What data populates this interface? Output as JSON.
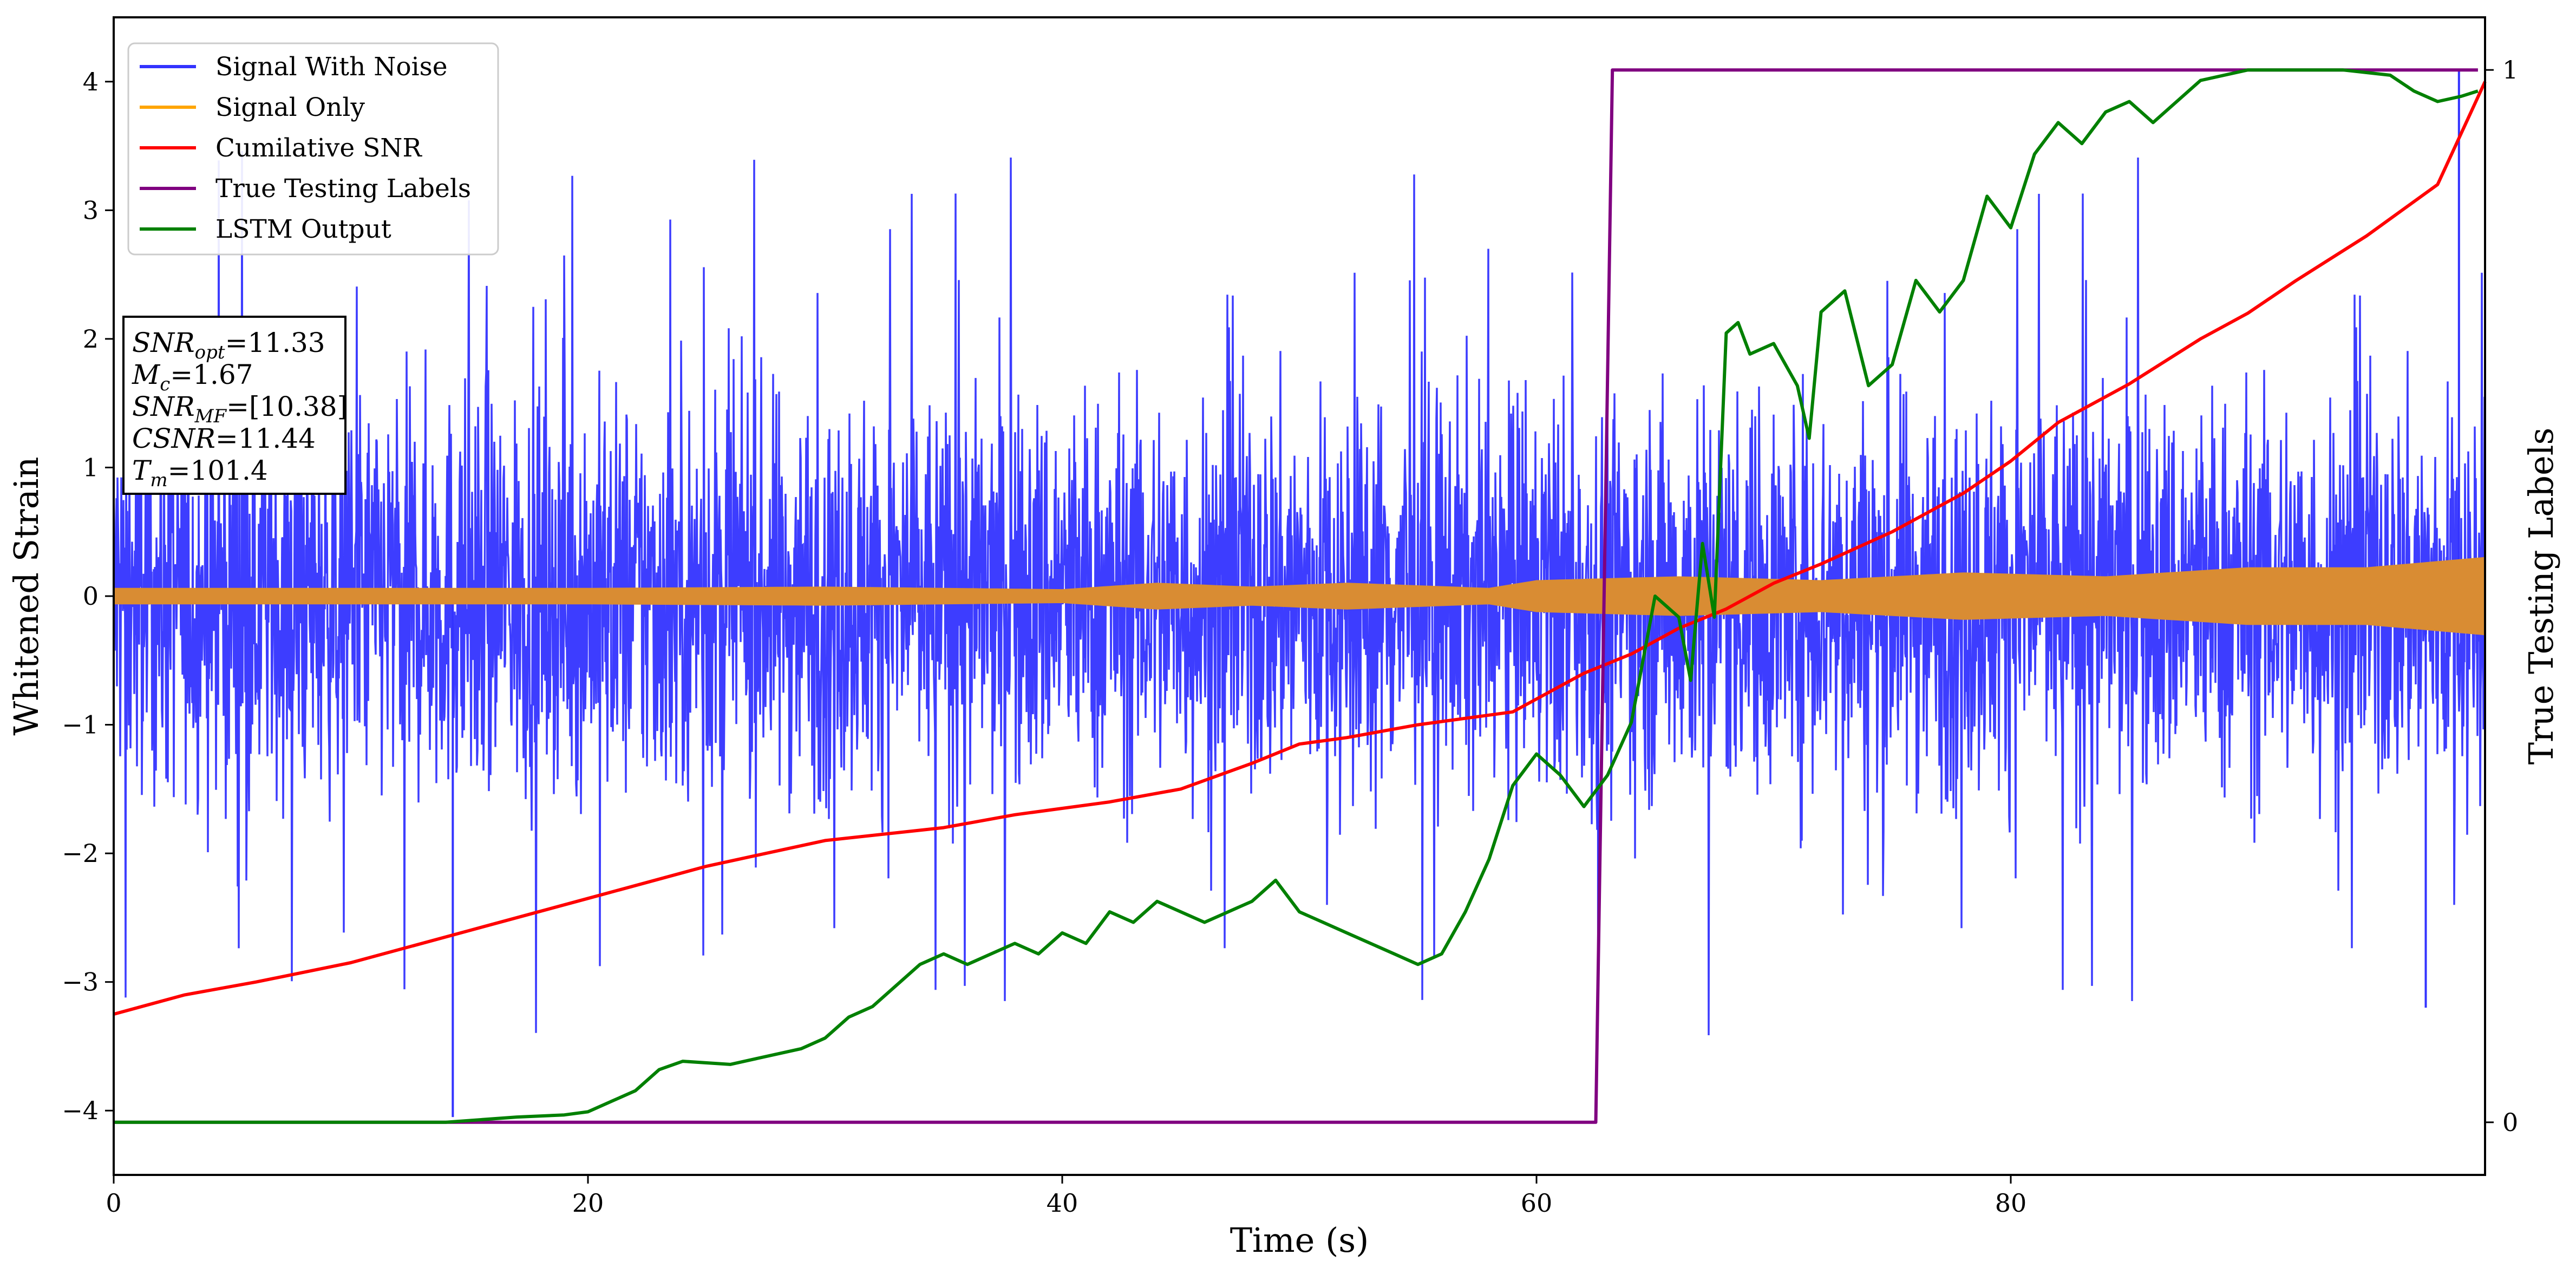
{
  "chart_data": {
    "type": "line",
    "xlabel": "Time (s)",
    "ylabel": "Whitened Strain",
    "y2label": "True Testing Labels",
    "xlim": [
      0,
      100
    ],
    "ylim": [
      -4.5,
      4.5
    ],
    "y2lim": [
      -0.05,
      1.05
    ],
    "xticks": [
      0,
      20,
      40,
      60,
      80
    ],
    "xtick_labels": [
      "0",
      "20",
      "40",
      "60",
      "80"
    ],
    "yticks": [
      -4,
      -3,
      -2,
      -1,
      0,
      1,
      2,
      3,
      4
    ],
    "ytick_labels": [
      "−4",
      "−3",
      "−2",
      "−1",
      "0",
      "1",
      "2",
      "3",
      "4"
    ],
    "y2ticks": [
      0,
      1
    ],
    "y2tick_labels": [
      "0",
      "1"
    ],
    "grid": false,
    "legend_position": "top-left",
    "info_box": {
      "lines": [
        {
          "sym": "SNR",
          "sub": "opt",
          "val": "=11.33"
        },
        {
          "sym": "M",
          "sub": "c",
          "val": "=1.67"
        },
        {
          "sym": "SNR",
          "sub": "MF",
          "val": "=[10.38]"
        },
        {
          "sym": "CSNR",
          "sub": "",
          "val": "=11.44"
        },
        {
          "sym": "T",
          "sub": "m",
          "val": "=101.4"
        }
      ]
    },
    "series": [
      {
        "name": "Signal With Noise",
        "color": "#3333ff",
        "axis": "left",
        "kind": "noise",
        "typical_amplitude": 1.1,
        "peak_amplitude": 4.1,
        "notable_spikes": [
          [
            14.3,
            -4.05
          ],
          [
            98.9,
            4.1
          ],
          [
            97.5,
            -3.2
          ],
          [
            62.6,
            -3.0
          ]
        ]
      },
      {
        "name": "Signal Only",
        "color": "#ffa500",
        "fill_color": "#d98c33",
        "axis": "left",
        "kind": "band",
        "envelope": [
          [
            0,
            0.06
          ],
          [
            20,
            0.06
          ],
          [
            30,
            0.07
          ],
          [
            40,
            0.05
          ],
          [
            44,
            0.1
          ],
          [
            48,
            0.07
          ],
          [
            52,
            0.1
          ],
          [
            58,
            0.06
          ],
          [
            60,
            0.12
          ],
          [
            66,
            0.15
          ],
          [
            72,
            0.12
          ],
          [
            78,
            0.18
          ],
          [
            84,
            0.15
          ],
          [
            90,
            0.22
          ],
          [
            95,
            0.22
          ],
          [
            100,
            0.3
          ]
        ]
      },
      {
        "name": "Cumilative SNR",
        "color": "#ff0000",
        "axis": "left",
        "x": [
          0,
          3,
          6,
          10,
          15,
          20,
          25,
          30,
          35,
          38,
          42,
          45,
          48,
          50,
          52,
          55,
          57,
          59,
          60,
          62,
          64,
          66,
          68,
          70,
          72,
          75,
          78,
          80,
          82,
          85,
          88,
          90,
          92,
          95,
          98,
          100
        ],
        "y": [
          -3.25,
          -3.1,
          -3.0,
          -2.85,
          -2.6,
          -2.35,
          -2.1,
          -1.9,
          -1.8,
          -1.7,
          -1.6,
          -1.5,
          -1.3,
          -1.15,
          -1.1,
          -1.0,
          -0.95,
          -0.9,
          -0.8,
          -0.6,
          -0.45,
          -0.25,
          -0.1,
          0.1,
          0.25,
          0.5,
          0.8,
          1.05,
          1.35,
          1.65,
          2.0,
          2.2,
          2.45,
          2.8,
          3.2,
          4.0
        ]
      },
      {
        "name": "True Testing Labels",
        "color": "#800080",
        "axis": "right",
        "x": [
          0,
          62.5,
          63.2,
          99.7
        ],
        "y": [
          0,
          0,
          1,
          1
        ]
      },
      {
        "name": "LSTM Output",
        "color": "#008000",
        "axis": "right",
        "x": [
          0,
          14,
          17,
          19,
          20,
          21,
          22,
          23,
          24,
          26,
          27,
          29,
          30,
          31,
          32,
          33,
          34,
          35,
          36,
          37,
          38,
          39,
          40,
          41,
          42,
          43,
          44,
          45,
          46,
          47,
          48,
          49,
          50,
          51,
          52,
          53,
          54,
          55,
          56,
          57,
          58,
          59,
          60,
          61,
          62,
          63,
          64,
          65,
          66,
          66.5,
          67,
          67.5,
          68,
          68.5,
          69,
          70,
          71,
          71.5,
          72,
          73,
          74,
          75,
          76,
          77,
          78,
          79,
          80,
          81,
          82,
          83,
          84,
          85,
          86,
          88,
          90,
          92,
          94,
          96,
          97,
          98,
          99,
          99.7
        ],
        "y": [
          0,
          0,
          0.005,
          0.007,
          0.01,
          0.02,
          0.03,
          0.05,
          0.058,
          0.055,
          0.06,
          0.07,
          0.08,
          0.1,
          0.11,
          0.13,
          0.15,
          0.16,
          0.15,
          0.16,
          0.17,
          0.16,
          0.18,
          0.17,
          0.2,
          0.19,
          0.21,
          0.2,
          0.19,
          0.2,
          0.21,
          0.23,
          0.2,
          0.19,
          0.18,
          0.17,
          0.16,
          0.15,
          0.16,
          0.2,
          0.25,
          0.32,
          0.35,
          0.33,
          0.3,
          0.33,
          0.38,
          0.5,
          0.48,
          0.42,
          0.55,
          0.48,
          0.75,
          0.76,
          0.73,
          0.74,
          0.7,
          0.65,
          0.77,
          0.79,
          0.7,
          0.72,
          0.8,
          0.77,
          0.8,
          0.88,
          0.85,
          0.92,
          0.95,
          0.93,
          0.96,
          0.97,
          0.95,
          0.99,
          1.0,
          1.0,
          1.0,
          0.995,
          0.98,
          0.97,
          0.975,
          0.98
        ]
      }
    ]
  }
}
